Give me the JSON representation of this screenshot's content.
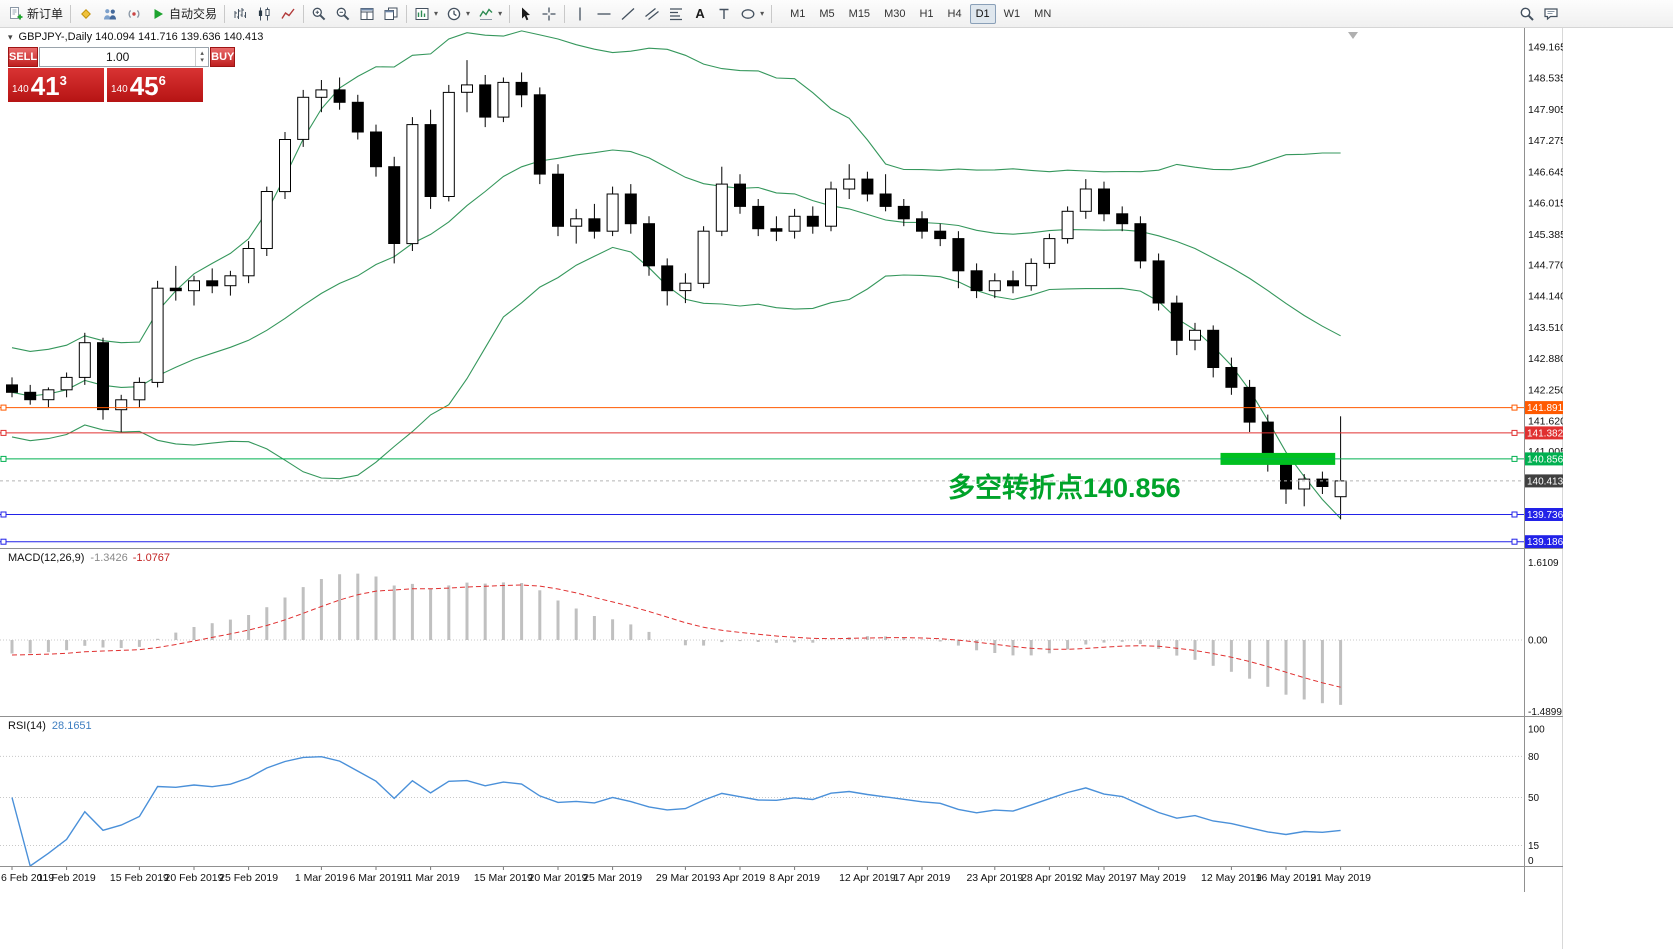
{
  "glyphs": {
    "dropdown": "▾",
    "spin_up": "▴",
    "spin_down": "▾",
    "collapse": "▾"
  },
  "colors": {
    "bull": "#ffffff",
    "bear": "#000000",
    "candle_border": "#000000",
    "panel_red": "#c81d1d",
    "zone_green": "#00c020",
    "annotation_green": "#00a32a",
    "active_tf_bg": "#dfe7ee"
  },
  "toolbar": {
    "items": [
      {
        "icon": "new-order-icon",
        "label": "新订单",
        "name": "new-order-button"
      },
      {
        "sep": true
      },
      {
        "icon": "community-icon",
        "name": "community-button"
      },
      {
        "icon": "users-icon",
        "name": "users-button"
      },
      {
        "icon": "broadcast-icon",
        "name": "broadcast-button"
      },
      {
        "icon": "autotrading-icon",
        "label": "自动交易",
        "name": "autotrading-button"
      },
      {
        "sep": true
      },
      {
        "icon": "bar-chart-icon",
        "name": "bar-chart-button"
      },
      {
        "icon": "candlestick-icon",
        "name": "candlestick-button"
      },
      {
        "icon": "line-chart-icon",
        "name": "line-chart-button"
      },
      {
        "sep": true
      },
      {
        "icon": "zoom-in-icon",
        "name": "zoom-in-button"
      },
      {
        "icon": "zoom-out-icon",
        "name": "zoom-out-button"
      },
      {
        "icon": "tile-windows-icon",
        "name": "tile-windows-button"
      },
      {
        "icon": "cascade-windows-icon",
        "name": "cascade-windows-button"
      },
      {
        "sep": true
      },
      {
        "icon": "new-chart-icon",
        "dropdown": true,
        "name": "new-chart-button"
      },
      {
        "icon": "periods-icon",
        "dropdown": true,
        "name": "periods-button"
      },
      {
        "icon": "indicators-icon",
        "dropdown": true,
        "name": "indicators-button"
      },
      {
        "sep": true
      },
      {
        "icon": "cursor-icon",
        "name": "cursor-button"
      },
      {
        "icon": "crosshair-icon",
        "name": "crosshair-button"
      },
      {
        "sep": true
      },
      {
        "icon": "vertical-line-icon",
        "name": "vertical-line-button"
      },
      {
        "icon": "horizontal-line-icon",
        "name": "horizontal-line-button"
      },
      {
        "icon": "trendline-icon",
        "name": "trendline-button"
      },
      {
        "icon": "channel-icon",
        "name": "channel-button"
      },
      {
        "icon": "fibonacci-icon",
        "name": "fibonacci-button"
      },
      {
        "icon": "text-icon",
        "name": "text-button"
      },
      {
        "icon": "label-icon",
        "name": "label-button"
      },
      {
        "icon": "shapes-icon",
        "dropdown": true,
        "name": "shapes-button"
      },
      {
        "sep": true
      }
    ],
    "text_icon_glyph": "A",
    "timeframes": [
      "M1",
      "M5",
      "M15",
      "M30",
      "H1",
      "H4",
      "D1",
      "W1",
      "MN"
    ],
    "active_timeframe": "D1",
    "right_icons": [
      {
        "icon": "search-icon",
        "name": "search-button"
      },
      {
        "icon": "chat-icon",
        "name": "chat-button"
      }
    ]
  },
  "chart": {
    "symbol_info": "GBPJPY-,Daily 140.094 141.716 139.636 140.413",
    "annotation": {
      "text": "多空转折点140.856",
      "color": "#00a32a"
    },
    "trade_panel": {
      "sell_label": "SELL",
      "buy_label": "BUY",
      "volume": "1.00",
      "sell_price_small": "140",
      "sell_price_big": "41",
      "sell_price_sup": "3",
      "buy_price_small": "140",
      "buy_price_big": "45",
      "buy_price_sup": "6"
    }
  },
  "chart_data": {
    "type": "candlestick",
    "symbol": "GBPJPY-",
    "timeframe": "Daily",
    "ohlc_current": {
      "open": 140.094,
      "high": 141.716,
      "low": 139.636,
      "close": 140.413
    },
    "y_axis_ticks": [
      149.165,
      148.535,
      147.905,
      147.275,
      146.645,
      146.015,
      145.385,
      144.77,
      144.14,
      143.51,
      142.88,
      142.25,
      141.62,
      141.005
    ],
    "x_axis_labels": [
      {
        "i": 0,
        "t": "6 Feb 2019"
      },
      {
        "i": 3,
        "t": "11 Feb 2019"
      },
      {
        "i": 7,
        "t": "15 Feb 2019"
      },
      {
        "i": 10,
        "t": "20 Feb 2019"
      },
      {
        "i": 13,
        "t": "25 Feb 2019"
      },
      {
        "i": 17,
        "t": "1 Mar 2019"
      },
      {
        "i": 20,
        "t": "6 Mar 2019"
      },
      {
        "i": 23,
        "t": "11 Mar 2019"
      },
      {
        "i": 27,
        "t": "15 Mar 2019"
      },
      {
        "i": 30,
        "t": "20 Mar 2019"
      },
      {
        "i": 33,
        "t": "25 Mar 2019"
      },
      {
        "i": 37,
        "t": "29 Mar 2019"
      },
      {
        "i": 40,
        "t": "3 Apr 2019"
      },
      {
        "i": 43,
        "t": "8 Apr 2019"
      },
      {
        "i": 47,
        "t": "12 Apr 2019"
      },
      {
        "i": 50,
        "t": "17 Apr 2019"
      },
      {
        "i": 54,
        "t": "23 Apr 2019"
      },
      {
        "i": 57,
        "t": "28 Apr 2019"
      },
      {
        "i": 60,
        "t": "2 May 2019"
      },
      {
        "i": 63,
        "t": "7 May 2019"
      },
      {
        "i": 67,
        "t": "12 May 2019"
      },
      {
        "i": 70,
        "t": "16 May 2019"
      },
      {
        "i": 73,
        "t": "21 May 2019"
      }
    ],
    "candles": [
      [
        142.35,
        142.5,
        142.1,
        142.2
      ],
      [
        142.2,
        142.35,
        141.95,
        142.05
      ],
      [
        142.05,
        142.3,
        141.9,
        142.25
      ],
      [
        142.25,
        142.6,
        142.1,
        142.5
      ],
      [
        142.5,
        143.4,
        142.35,
        143.2
      ],
      [
        143.2,
        143.3,
        141.65,
        141.85
      ],
      [
        141.85,
        142.15,
        141.4,
        142.05
      ],
      [
        142.05,
        142.5,
        141.9,
        142.4
      ],
      [
        142.4,
        144.45,
        142.3,
        144.3
      ],
      [
        144.3,
        144.75,
        144.05,
        144.25
      ],
      [
        144.25,
        144.55,
        143.95,
        144.45
      ],
      [
        144.45,
        144.7,
        144.2,
        144.35
      ],
      [
        144.35,
        144.65,
        144.15,
        144.55
      ],
      [
        144.55,
        145.25,
        144.4,
        145.1
      ],
      [
        145.1,
        146.35,
        144.95,
        146.25
      ],
      [
        146.25,
        147.45,
        146.1,
        147.3
      ],
      [
        147.3,
        148.3,
        147.15,
        148.15
      ],
      [
        148.15,
        148.5,
        147.85,
        148.3
      ],
      [
        148.3,
        148.55,
        147.9,
        148.05
      ],
      [
        148.05,
        148.2,
        147.3,
        147.45
      ],
      [
        147.45,
        147.6,
        146.55,
        146.75
      ],
      [
        146.75,
        146.95,
        144.8,
        145.2
      ],
      [
        145.2,
        147.75,
        145.05,
        147.6
      ],
      [
        147.6,
        147.9,
        145.9,
        146.15
      ],
      [
        146.15,
        148.4,
        146.05,
        148.25
      ],
      [
        148.25,
        148.9,
        147.85,
        148.4
      ],
      [
        148.4,
        148.6,
        147.55,
        147.75
      ],
      [
        147.75,
        148.55,
        147.65,
        148.45
      ],
      [
        148.45,
        148.65,
        147.95,
        148.2
      ],
      [
        148.2,
        148.35,
        146.4,
        146.6
      ],
      [
        146.6,
        146.8,
        145.35,
        145.55
      ],
      [
        145.55,
        145.9,
        145.2,
        145.7
      ],
      [
        145.7,
        146.0,
        145.3,
        145.45
      ],
      [
        145.45,
        146.35,
        145.35,
        146.2
      ],
      [
        146.2,
        146.4,
        145.4,
        145.6
      ],
      [
        145.6,
        145.75,
        144.55,
        144.75
      ],
      [
        144.75,
        144.9,
        143.95,
        144.25
      ],
      [
        144.25,
        144.6,
        144.0,
        144.4
      ],
      [
        144.4,
        145.55,
        144.3,
        145.45
      ],
      [
        145.45,
        146.75,
        145.35,
        146.4
      ],
      [
        146.4,
        146.6,
        145.8,
        145.95
      ],
      [
        145.95,
        146.1,
        145.35,
        145.5
      ],
      [
        145.5,
        145.75,
        145.25,
        145.45
      ],
      [
        145.45,
        145.9,
        145.3,
        145.75
      ],
      [
        145.75,
        145.95,
        145.4,
        145.55
      ],
      [
        145.55,
        146.45,
        145.45,
        146.3
      ],
      [
        146.3,
        146.8,
        146.1,
        146.5
      ],
      [
        146.5,
        146.65,
        146.05,
        146.2
      ],
      [
        146.2,
        146.6,
        145.85,
        145.95
      ],
      [
        145.95,
        146.1,
        145.55,
        145.7
      ],
      [
        145.7,
        145.85,
        145.3,
        145.45
      ],
      [
        145.45,
        145.6,
        145.15,
        145.3
      ],
      [
        145.3,
        145.45,
        144.3,
        144.65
      ],
      [
        144.65,
        144.8,
        144.1,
        144.25
      ],
      [
        144.25,
        144.6,
        144.1,
        144.45
      ],
      [
        144.45,
        144.65,
        144.2,
        144.35
      ],
      [
        144.35,
        144.9,
        144.25,
        144.8
      ],
      [
        144.8,
        145.4,
        144.7,
        145.3
      ],
      [
        145.3,
        145.95,
        145.2,
        145.85
      ],
      [
        145.85,
        146.5,
        145.7,
        146.3
      ],
      [
        146.3,
        146.45,
        145.65,
        145.8
      ],
      [
        145.8,
        145.95,
        145.45,
        145.6
      ],
      [
        145.6,
        145.75,
        144.7,
        144.85
      ],
      [
        144.85,
        145.0,
        143.85,
        144.0
      ],
      [
        144.0,
        144.15,
        142.95,
        143.25
      ],
      [
        143.25,
        143.6,
        143.05,
        143.45
      ],
      [
        143.45,
        143.55,
        142.5,
        142.7
      ],
      [
        142.7,
        142.9,
        142.15,
        142.3
      ],
      [
        142.3,
        142.45,
        141.4,
        141.6
      ],
      [
        141.6,
        141.75,
        140.6,
        140.8
      ],
      [
        140.8,
        140.95,
        139.95,
        140.25
      ],
      [
        140.25,
        140.55,
        139.9,
        140.45
      ],
      [
        140.45,
        140.6,
        140.15,
        140.3
      ],
      [
        140.094,
        141.716,
        139.636,
        140.413
      ]
    ],
    "overlays": {
      "bollinger": {
        "period": 20,
        "deviation": 1.8,
        "color": "#35975c"
      },
      "levels": [
        {
          "price": 141.891,
          "label": "141.891",
          "color": "#ff5a00"
        },
        {
          "price": 141.382,
          "label": "141.382",
          "color": "#e03030"
        },
        {
          "price": 140.856,
          "label": "140.856",
          "color": "#00b050"
        },
        {
          "price": 139.736,
          "label": "139.736",
          "color": "#2222e8"
        },
        {
          "price": 139.186,
          "label": "139.186",
          "color": "#2222e8"
        }
      ],
      "zone": {
        "price": 140.856,
        "from": 66.4,
        "to": 72.7,
        "thickness": 12,
        "color": "#00c020"
      },
      "current_price": {
        "price": 140.413,
        "label": "140.413",
        "bg": "#404040"
      }
    },
    "indicators": [
      {
        "type": "macd",
        "label": "MACD(12,26,9)",
        "value_main": "-1.3426",
        "value_signal": "-1.0767",
        "scale": [
          {
            "v": 1.6109,
            "t": "1.6109"
          },
          {
            "v": 0,
            "t": "0.00"
          },
          {
            "v": -1.4899,
            "t": "-1.4899"
          }
        ],
        "histogram_color": "#c0c0c0",
        "signal_color": "#e03030"
      },
      {
        "type": "rsi",
        "label": "RSI(14)",
        "value": "28.1651",
        "scale": [
          {
            "v": 100,
            "t": "100"
          },
          {
            "v": 80,
            "t": "80"
          },
          {
            "v": 50,
            "t": "50"
          },
          {
            "v": 15,
            "t": "15"
          },
          {
            "v": 0,
            "t": "0"
          }
        ],
        "levels": [
          80,
          50,
          15
        ],
        "color": "#4a90d9"
      }
    ]
  }
}
